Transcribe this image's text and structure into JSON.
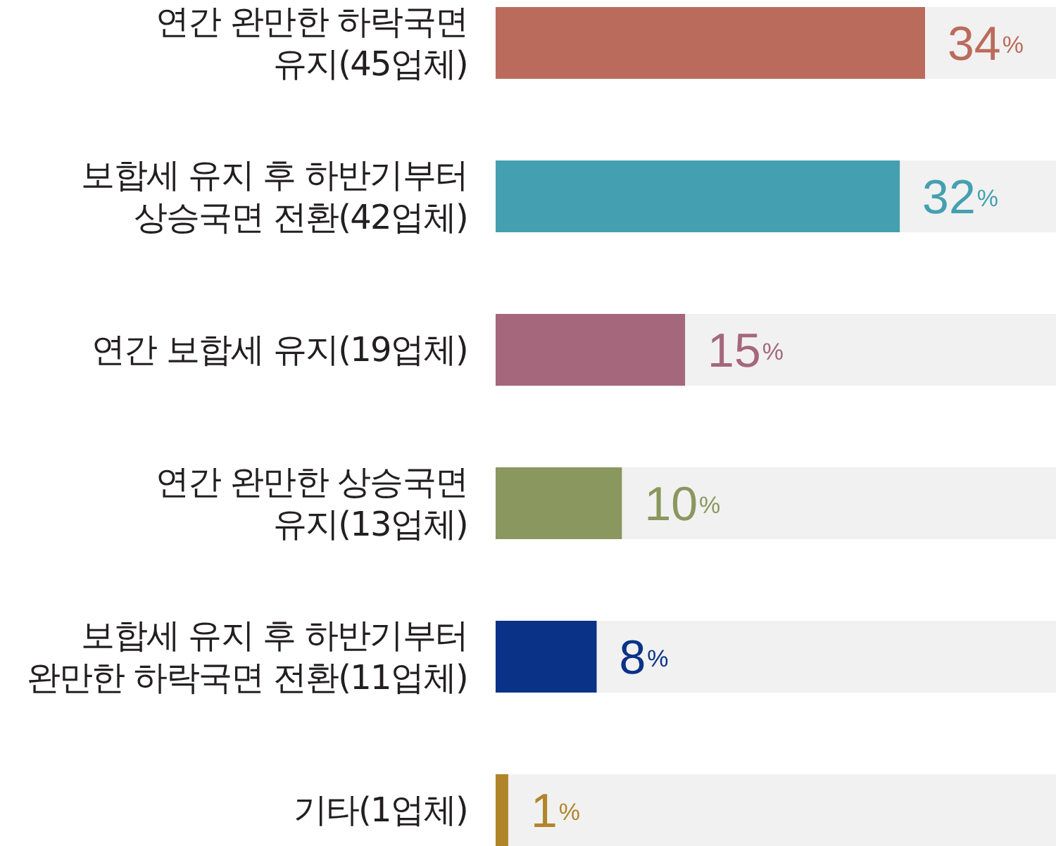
{
  "chart_data": {
    "type": "bar",
    "orientation": "horizontal",
    "categories": [
      "연간 완만한 하락국면\n유지(45업체)",
      "보합세 유지 후 하반기부터\n상승국면 전환(42업체)",
      "연간 보합세 유지(19업체)",
      "연간 완만한 상승국면\n유지(13업체)",
      "보합세 유지 후 하반기부터\n완만한 하락국면 전환(11업체)",
      "기타(1업체)"
    ],
    "values": [
      34,
      32,
      15,
      10,
      8,
      1
    ],
    "colors": [
      "#bb6b5b",
      "#44a0b0",
      "#a5677c",
      "#8a975e",
      "#0a3287",
      "#b0852a"
    ],
    "value_labels": [
      "34%",
      "32%",
      "15%",
      "10%",
      "8%",
      "1%"
    ]
  }
}
